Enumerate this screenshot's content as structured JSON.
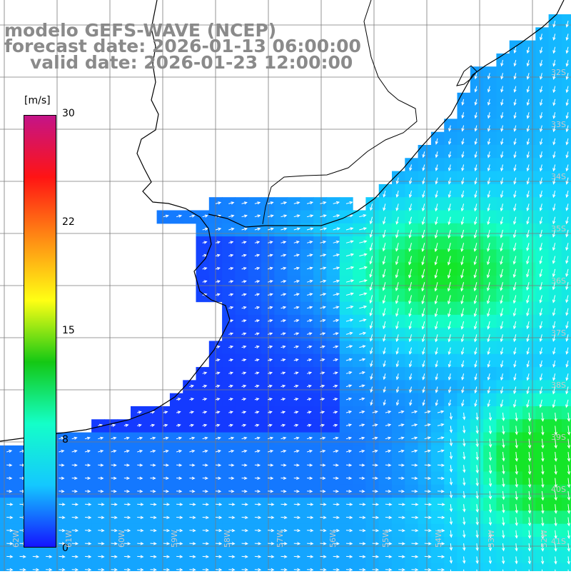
{
  "title": {
    "model": "modelo GEFS-WAVE (NCEP)",
    "forecast": "forecast date: 2026-01-13 06:00:00",
    "valid": "valid date: 2026-01-23 12:00:00"
  },
  "legend": {
    "unit": "[m/s]",
    "ticks": [
      "30",
      "22",
      "15",
      "8",
      "0"
    ],
    "colors": [
      "#c41488",
      "#ff1414",
      "#ff8c14",
      "#ffff14",
      "#14c814",
      "#14ffc8",
      "#14c8ff",
      "#1414ff"
    ]
  },
  "map": {
    "lat_labels": [
      "32S",
      "33S",
      "34S",
      "35S",
      "36S",
      "37S",
      "38S",
      "39S",
      "40S",
      "41S"
    ],
    "lon_labels": [
      "62W",
      "61W",
      "60W",
      "59W",
      "58W",
      "57W",
      "56W",
      "55W",
      "54W",
      "53W",
      "52W"
    ],
    "background_land": "#ffffff",
    "grid_color": "#7a7a7a",
    "coast_color": "#000000"
  }
}
